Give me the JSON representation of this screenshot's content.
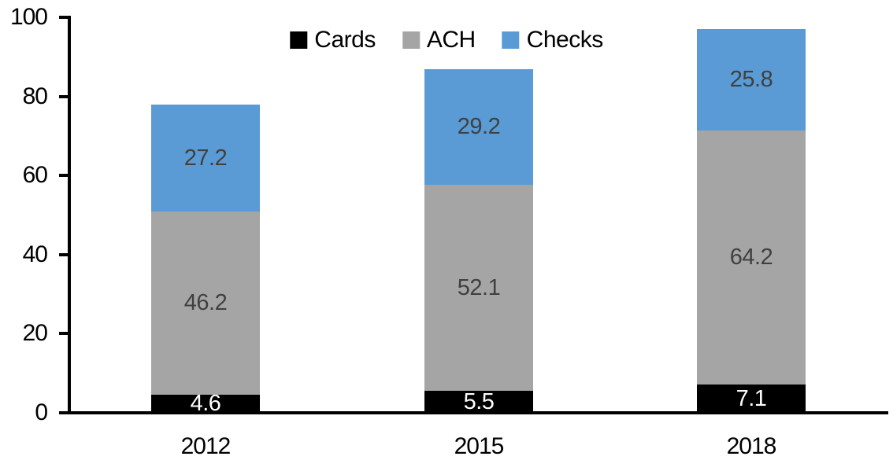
{
  "chart_data": {
    "type": "bar",
    "stacked": true,
    "title": "",
    "xlabel": "",
    "ylabel": "",
    "categories": [
      "2012",
      "2015",
      "2018"
    ],
    "series": [
      {
        "name": "Cards",
        "color": "#000000",
        "label_color": "#ffffff",
        "values": [
          4.6,
          5.5,
          7.1
        ]
      },
      {
        "name": "ACH",
        "color": "#a5a5a5",
        "label_color": "#404040",
        "values": [
          46.2,
          52.1,
          64.2
        ]
      },
      {
        "name": "Checks",
        "color": "#5b9bd5",
        "label_color": "#404040",
        "values": [
          27.2,
          29.2,
          25.8
        ]
      }
    ],
    "totals": [
      78.0,
      86.8,
      97.1
    ],
    "ylim": [
      0,
      100
    ],
    "yticks": [
      0,
      20,
      40,
      60,
      80,
      100
    ],
    "grid": false,
    "legend_position": "top-center",
    "axis_color": "#000000",
    "tick_label_color": "#000000"
  }
}
